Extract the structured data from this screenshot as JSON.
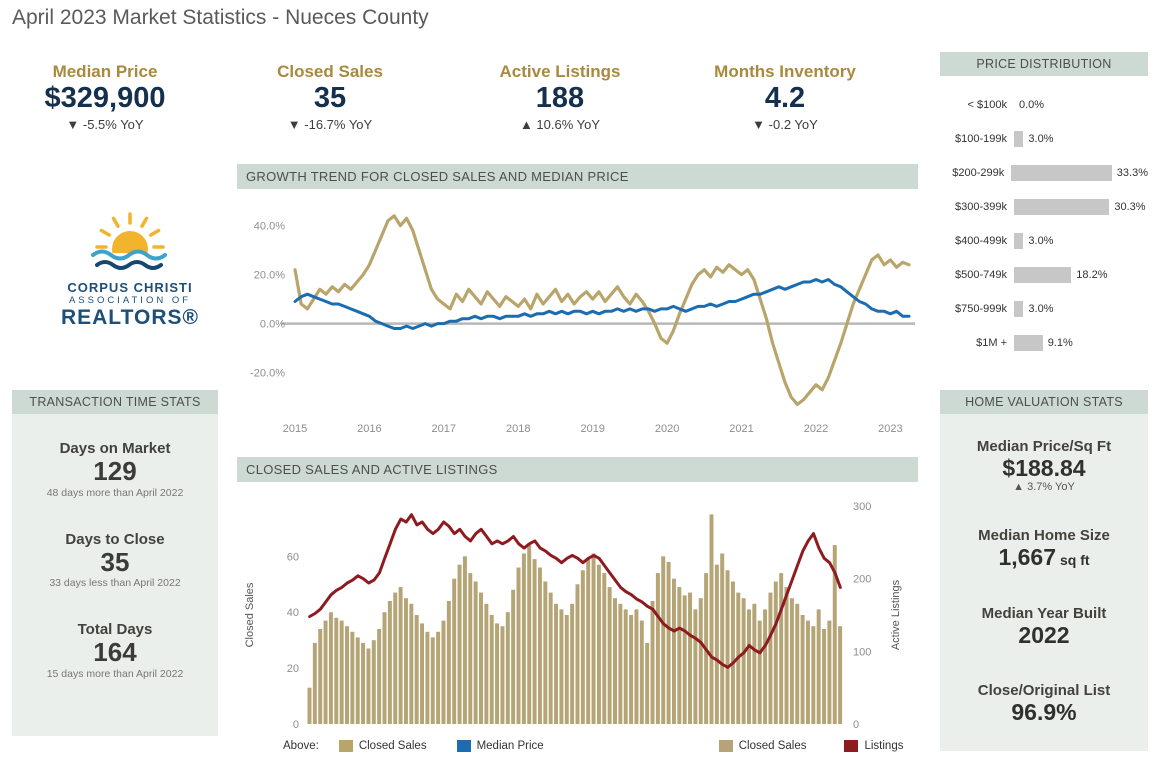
{
  "title": "April 2023 Market Statistics - Nueces County",
  "colors": {
    "gold": "#a8893d",
    "navy": "#14304d",
    "blue": "#1b6cb0",
    "red": "#8e1b20",
    "tan": "#b5a475",
    "header_bg": "#cdd9d3"
  },
  "kpis": [
    {
      "label": "Median Price",
      "value": "$329,900",
      "delta": "▼ -5.5% YoY"
    },
    {
      "label": "Closed Sales",
      "value": "35",
      "delta": "▼ -16.7% YoY"
    },
    {
      "label": "Active Listings",
      "value": "188",
      "delta": "▲ 10.6% YoY"
    },
    {
      "label": "Months Inventory",
      "value": "4.2",
      "delta": "▼ -0.2 YoY"
    }
  ],
  "logo": {
    "line1": "CORPUS CHRISTI",
    "line2": "ASSOCIATION OF",
    "line3": "REALTORS®"
  },
  "price_distribution": {
    "title": "PRICE DISTRIBUTION",
    "rows": [
      {
        "label": "< $100k",
        "value": 0.0,
        "text": "0.0%"
      },
      {
        "label": "$100-199k",
        "value": 3.0,
        "text": "3.0%"
      },
      {
        "label": "$200-299k",
        "value": 33.3,
        "text": "33.3%"
      },
      {
        "label": "$300-399k",
        "value": 30.3,
        "text": "30.3%"
      },
      {
        "label": "$400-499k",
        "value": 3.0,
        "text": "3.0%"
      },
      {
        "label": "$500-749k",
        "value": 18.2,
        "text": "18.2%"
      },
      {
        "label": "$750-999k",
        "value": 3.0,
        "text": "3.0%"
      },
      {
        "label": "$1M +",
        "value": 9.1,
        "text": "9.1%"
      }
    ]
  },
  "transaction_time": {
    "title": "TRANSACTION TIME STATS",
    "stats": [
      {
        "label": "Days on Market",
        "value": "129",
        "note": "48 days more than April 2022"
      },
      {
        "label": "Days to Close",
        "value": "35",
        "note": "33 days less than April 2022"
      },
      {
        "label": "Total Days",
        "value": "164",
        "note": "15 days more than April 2022"
      }
    ]
  },
  "home_valuation": {
    "title": "HOME VALUATION STATS",
    "stats": [
      {
        "label": "Median Price/Sq Ft",
        "value": "$188.84",
        "note": "▲ 3.7% YoY"
      },
      {
        "label": "Median Home Size",
        "value": "1,667",
        "suffix": "sq ft"
      },
      {
        "label": "Median Year Built",
        "value": "2022"
      },
      {
        "label": "Close/Original List",
        "value": "96.9%"
      }
    ]
  },
  "legend": {
    "above_label": "Above:",
    "items": [
      {
        "label": "Closed Sales",
        "color": "#b9a56b"
      },
      {
        "label": "Median Price",
        "color": "#1b6cb0"
      },
      {
        "label": "Closed Sales",
        "color": "#b5a475"
      },
      {
        "label": "Listings",
        "color": "#8e1b20"
      }
    ]
  },
  "chart_data": [
    {
      "type": "line",
      "title": "GROWTH TREND FOR CLOSED SALES AND MEDIAN PRICE",
      "x_note": "monthly, Jan 2015 - Apr 2023, YoY % growth",
      "x_years": [
        2015,
        2016,
        2017,
        2018,
        2019,
        2020,
        2021,
        2022,
        2023
      ],
      "y_ticks": [
        "40.0%",
        "20.0%",
        "0.0%",
        "-20.0%"
      ],
      "y_tick_values": [
        40,
        20,
        0,
        -20
      ],
      "ylim": [
        -32,
        48
      ],
      "series": [
        {
          "name": "Closed Sales",
          "color": "#b9a56b",
          "values": [
            22,
            8,
            6,
            10,
            14,
            12,
            15,
            13,
            16,
            14,
            17,
            20,
            24,
            30,
            36,
            42,
            44,
            40,
            43,
            38,
            30,
            22,
            14,
            10,
            8,
            6,
            12,
            9,
            14,
            11,
            8,
            13,
            10,
            7,
            11,
            9,
            7,
            10,
            6,
            12,
            8,
            11,
            14,
            9,
            12,
            8,
            11,
            13,
            10,
            13,
            9,
            12,
            15,
            11,
            8,
            12,
            9,
            5,
            0,
            -6,
            -8,
            -3,
            4,
            10,
            16,
            20,
            22,
            19,
            23,
            21,
            24,
            22,
            20,
            22,
            18,
            10,
            2,
            -8,
            -16,
            -24,
            -30,
            -33,
            -31,
            -28,
            -25,
            -27,
            -22,
            -15,
            -8,
            0,
            8,
            14,
            20,
            26,
            28,
            24,
            26,
            23,
            25,
            24
          ]
        },
        {
          "name": "Median Price",
          "color": "#1b6cb0",
          "values": [
            9,
            11,
            12,
            11,
            10,
            9,
            8,
            8,
            7,
            6,
            5,
            4,
            3,
            1,
            0,
            -1,
            -2,
            -2,
            -1,
            -2,
            -1,
            0,
            -1,
            0,
            0,
            1,
            1,
            2,
            2,
            3,
            2,
            3,
            3,
            2,
            3,
            3,
            3,
            4,
            3,
            4,
            4,
            5,
            4,
            5,
            4,
            5,
            5,
            4,
            5,
            4,
            5,
            5,
            6,
            5,
            6,
            5,
            6,
            6,
            5,
            6,
            6,
            7,
            6,
            5,
            6,
            7,
            7,
            8,
            7,
            8,
            9,
            9,
            10,
            11,
            12,
            12,
            13,
            14,
            15,
            14,
            15,
            16,
            17,
            17,
            18,
            17,
            18,
            16,
            15,
            13,
            11,
            9,
            8,
            6,
            5,
            5,
            4,
            5,
            3,
            3
          ]
        }
      ]
    },
    {
      "type": "bar+line",
      "title": "CLOSED SALES AND ACTIVE LISTINGS",
      "x_note": "monthly, Jan 2015 - Apr 2023",
      "left_axis": {
        "label": "Closed Sales",
        "ticks": [
          0,
          20,
          40,
          60
        ],
        "max": 78
      },
      "right_axis": {
        "label": "Active Listings",
        "ticks": [
          0,
          100,
          200,
          300
        ],
        "max": 300
      },
      "bars": {
        "name": "Closed Sales",
        "color": "#b5a475",
        "values": [
          13,
          29,
          34,
          37,
          40,
          38,
          37,
          35,
          33,
          31,
          29,
          27,
          30,
          34,
          40,
          44,
          47,
          49,
          45,
          43,
          39,
          36,
          33,
          31,
          33,
          37,
          44,
          52,
          57,
          60,
          54,
          51,
          47,
          43,
          39,
          36,
          35,
          40,
          48,
          56,
          61,
          64,
          59,
          56,
          51,
          47,
          43,
          41,
          39,
          43,
          50,
          55,
          59,
          61,
          57,
          54,
          49,
          45,
          43,
          41,
          39,
          41,
          37,
          29,
          44,
          54,
          60,
          58,
          52,
          49,
          46,
          47,
          41,
          45,
          54,
          75,
          57,
          61,
          55,
          51,
          47,
          45,
          41,
          43,
          37,
          41,
          47,
          51,
          54,
          49,
          45,
          43,
          39,
          37,
          35,
          41,
          34,
          37,
          64,
          35
        ]
      },
      "line": {
        "name": "Listings",
        "color": "#8e1b20",
        "values": [
          148,
          152,
          158,
          168,
          178,
          184,
          188,
          194,
          198,
          204,
          200,
          194,
          198,
          208,
          228,
          248,
          268,
          282,
          278,
          288,
          274,
          278,
          268,
          262,
          268,
          278,
          272,
          262,
          268,
          258,
          252,
          262,
          268,
          258,
          248,
          252,
          248,
          252,
          258,
          248,
          242,
          248,
          252,
          242,
          238,
          232,
          228,
          222,
          228,
          232,
          228,
          222,
          228,
          232,
          228,
          218,
          208,
          198,
          188,
          182,
          178,
          172,
          168,
          162,
          158,
          148,
          138,
          132,
          128,
          132,
          128,
          122,
          118,
          112,
          102,
          92,
          88,
          82,
          78,
          84,
          92,
          98,
          108,
          102,
          98,
          108,
          122,
          138,
          158,
          178,
          198,
          218,
          238,
          252,
          262,
          242,
          228,
          222,
          208,
          188
        ]
      }
    }
  ]
}
